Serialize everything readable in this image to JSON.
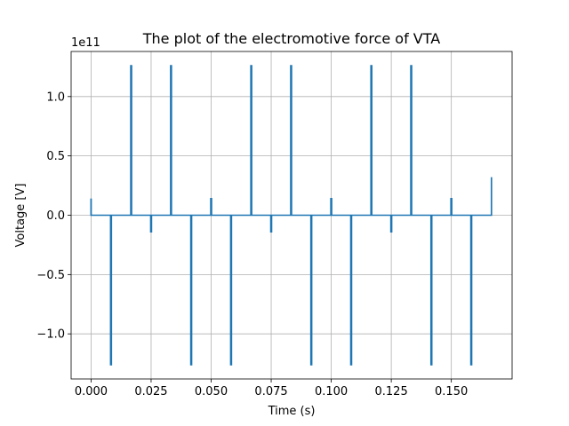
{
  "chart_data": {
    "type": "line",
    "title": "The plot of the electromotive force of VTA",
    "xlabel": "Time (s)",
    "ylabel": "Voltage [V]",
    "y_offset_text": "1e11",
    "xlim": [
      -0.0083,
      0.1753
    ],
    "ylim": [
      -1.38,
      1.38
    ],
    "x_ticks": [
      0.0,
      0.025,
      0.05,
      0.075,
      0.1,
      0.125,
      0.15
    ],
    "x_tick_labels": [
      "0.000",
      "0.025",
      "0.050",
      "0.075",
      "0.100",
      "0.125",
      "0.150"
    ],
    "y_ticks": [
      -1.0,
      -0.5,
      0.0,
      0.5,
      1.0
    ],
    "y_tick_labels": [
      "−1.0",
      "−0.5",
      "0.0",
      "0.5",
      "1.0"
    ],
    "grid": true,
    "series": [
      {
        "color": "#1f77b4",
        "baseline": 0.0,
        "x_end": 0.1667,
        "spikes": [
          {
            "x": 0.0,
            "y": 0.14
          },
          {
            "x": 0.0083,
            "y": -1.26
          },
          {
            "x": 0.0167,
            "y": 1.26
          },
          {
            "x": 0.025,
            "y": -0.14
          },
          {
            "x": 0.0333,
            "y": 1.26
          },
          {
            "x": 0.0417,
            "y": -1.26
          },
          {
            "x": 0.05,
            "y": 0.14
          },
          {
            "x": 0.0583,
            "y": -1.26
          },
          {
            "x": 0.0667,
            "y": 1.26
          },
          {
            "x": 0.075,
            "y": -0.14
          },
          {
            "x": 0.0833,
            "y": 1.26
          },
          {
            "x": 0.0917,
            "y": -1.26
          },
          {
            "x": 0.1,
            "y": 0.14
          },
          {
            "x": 0.1083,
            "y": -1.26
          },
          {
            "x": 0.1167,
            "y": 1.26
          },
          {
            "x": 0.125,
            "y": -0.14
          },
          {
            "x": 0.1333,
            "y": 1.26
          },
          {
            "x": 0.1417,
            "y": -1.26
          },
          {
            "x": 0.15,
            "y": 0.14
          },
          {
            "x": 0.1583,
            "y": -1.26
          },
          {
            "x": 0.1667,
            "y": 0.32
          }
        ]
      }
    ]
  }
}
